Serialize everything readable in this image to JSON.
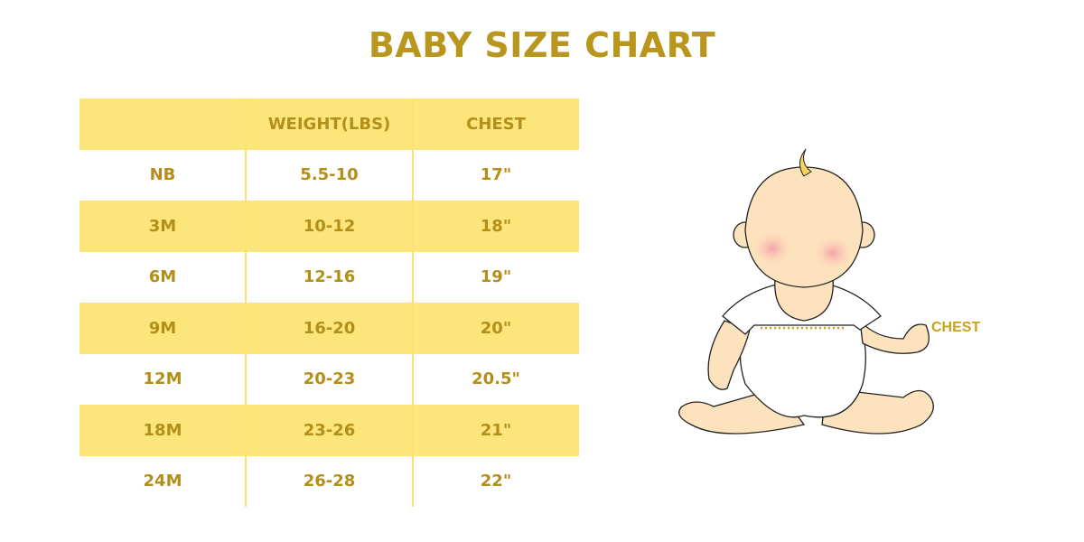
{
  "title": "BABY SIZE CHART",
  "table": {
    "headers": [
      "",
      "WEIGHT(LBS)",
      "CHEST"
    ],
    "rows": [
      [
        "NB",
        "5.5-10",
        "17\""
      ],
      [
        "3M",
        "10-12",
        "18\""
      ],
      [
        "6M",
        "12-16",
        "19\""
      ],
      [
        "9M",
        "16-20",
        "20\""
      ],
      [
        "12M",
        "20-23",
        "20.5\""
      ],
      [
        "18M",
        "23-26",
        "21\""
      ],
      [
        "24M",
        "26-28",
        "22\""
      ]
    ]
  },
  "illustration": {
    "chest_label": "CHEST"
  },
  "colors": {
    "text": "#b38f1a",
    "stripe": "#fce57a",
    "skin": "#fde3bd"
  }
}
